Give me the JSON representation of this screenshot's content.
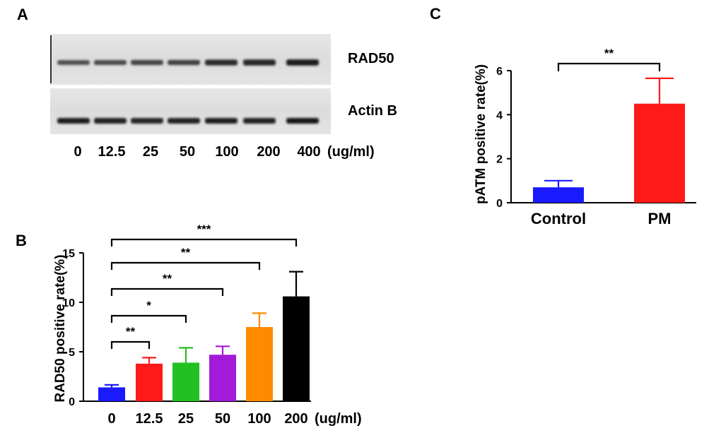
{
  "panel_letters": {
    "a": "A",
    "b": "B",
    "c": "C"
  },
  "blot": {
    "lane_labels": [
      "0",
      "12.5",
      "25",
      "50",
      "100",
      "200",
      "400"
    ],
    "unit": "(ug/ml)",
    "rows": [
      "RAD50",
      "Actin B"
    ],
    "rad50_band_intensity": [
      0.45,
      0.5,
      0.55,
      0.58,
      0.8,
      0.85,
      0.95
    ],
    "actin_band_intensity": [
      0.9,
      0.85,
      0.8,
      0.85,
      0.88,
      0.85,
      0.95
    ]
  },
  "chart_data": [
    {
      "type": "bar",
      "panel": "B",
      "categories": [
        "0",
        "12.5",
        "25",
        "50",
        "100",
        "200"
      ],
      "x_unit_label": "(ug/ml)",
      "values": [
        1.4,
        3.8,
        3.9,
        4.7,
        7.5,
        10.6
      ],
      "errors": [
        0.25,
        0.6,
        1.5,
        0.85,
        1.4,
        2.5
      ],
      "colors": [
        "#1a1aff",
        "#ff1a1a",
        "#22c022",
        "#a31ad8",
        "#ff8a00",
        "#000000"
      ],
      "xlabel": "",
      "ylabel": "RAD50 positive rate(%)",
      "ylim": [
        0,
        15
      ],
      "yticks": [
        0,
        5,
        10,
        15
      ],
      "significance": [
        {
          "from": 0,
          "to": 1,
          "label": "**"
        },
        {
          "from": 0,
          "to": 2,
          "label": "*"
        },
        {
          "from": 0,
          "to": 3,
          "label": "**"
        },
        {
          "from": 0,
          "to": 4,
          "label": "**"
        },
        {
          "from": 0,
          "to": 5,
          "label": "***"
        }
      ]
    },
    {
      "type": "bar",
      "panel": "C",
      "categories": [
        "Control",
        "PM"
      ],
      "values": [
        0.7,
        4.5
      ],
      "errors": [
        0.3,
        1.15
      ],
      "colors": [
        "#1a1aff",
        "#ff1a1a"
      ],
      "xlabel": "",
      "ylabel": "pATM positive rate(%)",
      "ylim": [
        0,
        6
      ],
      "yticks": [
        0,
        2,
        4,
        6
      ],
      "significance": [
        {
          "from": 0,
          "to": 1,
          "label": "**"
        }
      ]
    }
  ]
}
